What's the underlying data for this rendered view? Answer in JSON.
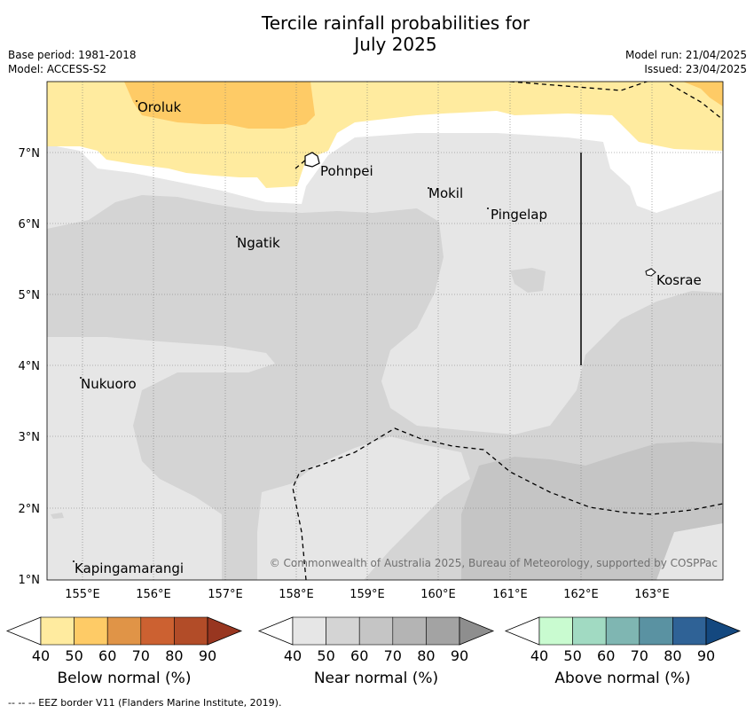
{
  "title_line1": "Tercile rainfall probabilities for",
  "title_line2": "July 2025",
  "base_period": "Base period: 1981-2018",
  "model": "Model: ACCESS-S2",
  "model_run": "Model run: 21/04/2025",
  "issued": "Issued: 23/04/2025",
  "copyright": "© Commonwealth of Australia 2025, Bureau of Meteorology, supported by COSPPac",
  "footer": "-- -- -- EEZ border V11 (Flanders Marine Institute, 2019).",
  "lon_ticks": [
    "155°E",
    "156°E",
    "157°E",
    "158°E",
    "159°E",
    "160°E",
    "161°E",
    "162°E",
    "163°E"
  ],
  "lat_ticks": [
    "7°N",
    "6°N",
    "5°N",
    "4°N",
    "3°N",
    "2°N",
    "1°N"
  ],
  "places": [
    {
      "name": "Oroluk"
    },
    {
      "name": "Pohnpei"
    },
    {
      "name": "Mokil"
    },
    {
      "name": "Pingelap"
    },
    {
      "name": "Ngatik"
    },
    {
      "name": "Kosrae"
    },
    {
      "name": "Nukuoro"
    },
    {
      "name": "Kapingamarangi"
    }
  ],
  "colorbars": [
    {
      "caption": "Below normal (%)",
      "colors": [
        "#ffeb9f",
        "#fecb66",
        "#e09447",
        "#cc6131",
        "#b24c28",
        "#983620"
      ]
    },
    {
      "caption": "Near normal (%)",
      "colors": [
        "#e6e6e6",
        "#d4d4d4",
        "#c5c5c5",
        "#b4b4b4",
        "#a3a3a3",
        "#8e8e8e"
      ]
    },
    {
      "caption": "Above normal (%)",
      "colors": [
        "#c9fbd0",
        "#a1dac2",
        "#7fb6b2",
        "#5a92a2",
        "#2f6296",
        "#14487f"
      ]
    }
  ],
  "colorbar_ticks": [
    "40",
    "50",
    "60",
    "70",
    "80",
    "90"
  ]
}
